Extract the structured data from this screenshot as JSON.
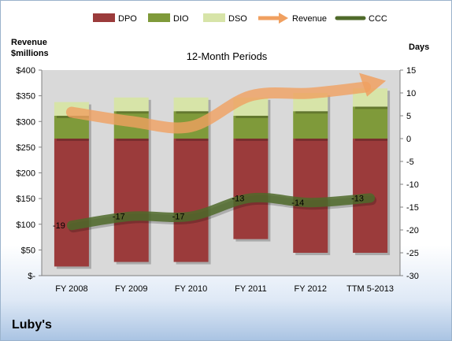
{
  "company": "Luby's",
  "chart_data": {
    "type": "bar",
    "title": "12-Month Periods",
    "ylabel_left": [
      "Revenue",
      "$millions"
    ],
    "ylabel_right": "Days",
    "categories": [
      "FY 2008",
      "FY 2009",
      "FY 2010",
      "FY 2011",
      "FY 2012",
      "TTM 5-2013"
    ],
    "y_left": {
      "min": 0,
      "max": 400,
      "step": 50,
      "tick_labels": [
        "$-",
        "$50",
        "$100",
        "$150",
        "$200",
        "$250",
        "$300",
        "$350",
        "$400"
      ]
    },
    "y_right": {
      "min": -30,
      "max": 15,
      "step": 5,
      "tick_labels": [
        "-30",
        "-25",
        "-20",
        "-15",
        "-10",
        "-5",
        "0",
        "5",
        "10",
        "15"
      ]
    },
    "grid": false,
    "legend_position": "top",
    "series": [
      {
        "name": "DPO",
        "axis": "right",
        "kind": "floating-bar",
        "color": "#9b3b3b",
        "ranges": [
          [
            -28,
            0
          ],
          [
            -27,
            0
          ],
          [
            -27,
            0
          ],
          [
            -22,
            0
          ],
          [
            -25,
            0
          ],
          [
            -25,
            0
          ]
        ]
      },
      {
        "name": "DIO",
        "axis": "right",
        "kind": "floating-bar",
        "color": "#7f9a3a",
        "ranges": [
          [
            0,
            5
          ],
          [
            0,
            6
          ],
          [
            0,
            6
          ],
          [
            0,
            5
          ],
          [
            0,
            6
          ],
          [
            0,
            7
          ]
        ]
      },
      {
        "name": "DSO",
        "axis": "right",
        "kind": "floating-bar",
        "color": "#d7e4a8",
        "ranges": [
          [
            5,
            8
          ],
          [
            6,
            9
          ],
          [
            6,
            9
          ],
          [
            5,
            9
          ],
          [
            6,
            10
          ],
          [
            7,
            11
          ]
        ]
      },
      {
        "name": "Revenue",
        "axis": "left",
        "kind": "arrow-line",
        "color": "#f0a060",
        "values": [
          318,
          300,
          290,
          350,
          355,
          370
        ]
      },
      {
        "name": "CCC",
        "axis": "right",
        "kind": "line",
        "color": "#4f6a2a",
        "values": [
          -19,
          -17,
          -17,
          -13,
          -14,
          -13
        ],
        "labels": [
          "-19",
          "-17",
          "-17",
          "-13",
          "-14",
          "-13"
        ]
      }
    ]
  }
}
